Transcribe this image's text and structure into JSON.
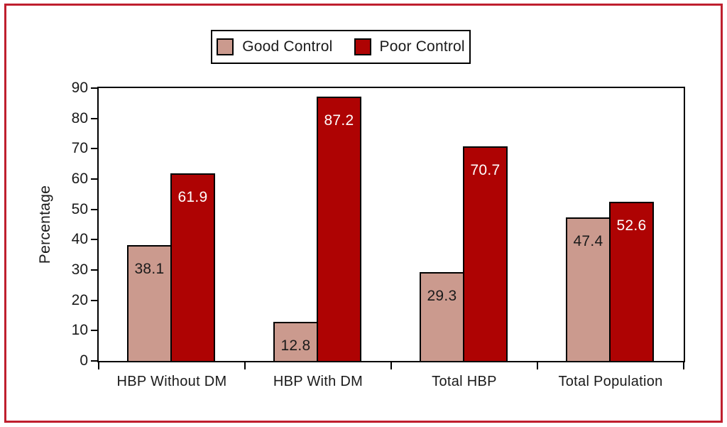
{
  "chart_data": {
    "type": "bar",
    "title": "",
    "categories": [
      "HBP Without DM",
      "HBP With DM",
      "Total HBP",
      "Total Population"
    ],
    "series": [
      {
        "name": "Good Control",
        "color": "#cb9a8e",
        "value_label_color": "#1a1a1a",
        "values": [
          38.1,
          12.8,
          29.3,
          47.4
        ]
      },
      {
        "name": "Poor Control",
        "color": "#ae0303",
        "value_label_color": "#ffffff",
        "values": [
          61.9,
          87.2,
          70.7,
          52.6
        ]
      }
    ],
    "xlabel": "",
    "ylabel": "Percentage",
    "ylim": [
      0,
      90
    ],
    "yticks": [
      0,
      10,
      20,
      30,
      40,
      50,
      60,
      70,
      80,
      90
    ],
    "grid": false,
    "legend_position": "top-center",
    "bar_outline_color": "#000000",
    "axis_color": "#000000",
    "frame_border_color": "#bf1f2e",
    "background_color": "#ffffff"
  }
}
